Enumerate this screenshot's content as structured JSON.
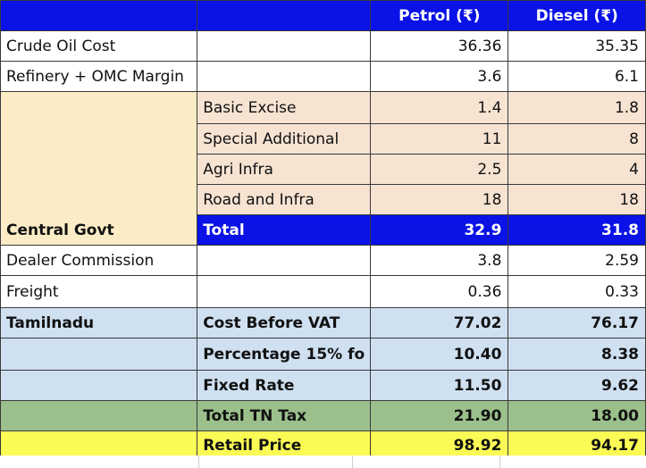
{
  "header": {
    "col1": "",
    "col2": "",
    "petrol": "Petrol (₹)",
    "diesel": "Diesel (₹)"
  },
  "rows": {
    "crude": {
      "label": "Crude Oil Cost",
      "sub": "",
      "petrol": "36.36",
      "diesel": "35.35"
    },
    "refinery": {
      "label": "Refinery + OMC Margin",
      "sub": "",
      "petrol": "3.6",
      "diesel": "6.1"
    },
    "basic_excise": {
      "sub": "Basic Excise",
      "petrol": "1.4",
      "diesel": "1.8"
    },
    "special_additional": {
      "sub": "Special Additional",
      "petrol": "11",
      "diesel": "8"
    },
    "agri_infra": {
      "sub": "Agri Infra",
      "petrol": "2.5",
      "diesel": "4"
    },
    "road_infra": {
      "sub": "Road and Infra",
      "petrol": "18",
      "diesel": "18"
    },
    "central_total": {
      "label": "Central Govt",
      "sub": "Total",
      "petrol": "32.9",
      "diesel": "31.8"
    },
    "dealer": {
      "label": "Dealer Commission",
      "sub": "",
      "petrol": "3.8",
      "diesel": "2.59"
    },
    "freight": {
      "label": "Freight",
      "sub": "",
      "petrol": "0.36",
      "diesel": "0.33"
    },
    "cost_before_vat": {
      "label": "Tamilnadu",
      "sub": "Cost Before VAT",
      "petrol": "77.02",
      "diesel": "76.17"
    },
    "percentage": {
      "label": "",
      "sub": "Percentage 15% fo",
      "petrol": "10.40",
      "diesel": "8.38"
    },
    "fixed_rate": {
      "label": "",
      "sub": "Fixed Rate",
      "petrol": "11.50",
      "diesel": "9.62"
    },
    "total_tn_tax": {
      "label": "",
      "sub": "Total TN Tax",
      "petrol": "21.90",
      "diesel": "18.00"
    },
    "retail_price": {
      "label": "",
      "sub": "Retail Price",
      "petrol": "98.92",
      "diesel": "94.17"
    }
  },
  "colors": {
    "header_blue": "#0a12e6",
    "central_peach": "#f7e3d2",
    "central_cream": "#fbecc6",
    "tn_light_blue": "#cfe0f1",
    "tn_tax_green": "#9bc08b",
    "retail_yellow": "#fbfb55"
  }
}
